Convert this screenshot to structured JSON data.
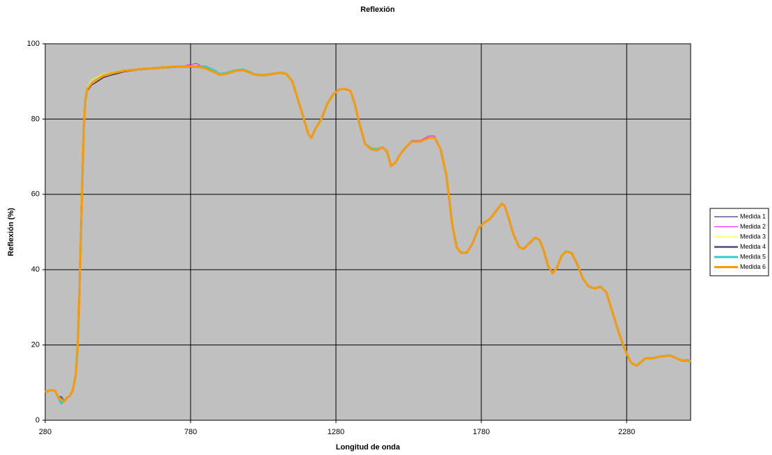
{
  "chart_data": {
    "type": "line",
    "title": "Reflexión",
    "xlabel": "Longitud de onda",
    "ylabel": "Reflexión (%)",
    "xlim": [
      280,
      2500
    ],
    "xticks": [
      280,
      780,
      1280,
      1780,
      2280
    ],
    "ylim": [
      0,
      100
    ],
    "yticks": [
      0,
      20,
      40,
      60,
      80,
      100
    ],
    "grid": true,
    "legend": "right",
    "x": [
      280,
      300,
      315,
      325,
      335,
      345,
      355,
      365,
      375,
      385,
      392,
      398,
      403,
      408,
      413,
      418,
      425,
      440,
      460,
      480,
      500,
      550,
      600,
      650,
      700,
      750,
      800,
      830,
      860,
      880,
      900,
      930,
      960,
      980,
      1000,
      1030,
      1060,
      1090,
      1110,
      1130,
      1150,
      1170,
      1185,
      1195,
      1210,
      1230,
      1250,
      1270,
      1290,
      1310,
      1330,
      1345,
      1360,
      1380,
      1400,
      1420,
      1440,
      1455,
      1470,
      1485,
      1500,
      1520,
      1540,
      1570,
      1600,
      1620,
      1640,
      1660,
      1680,
      1695,
      1710,
      1730,
      1750,
      1770,
      1790,
      1810,
      1830,
      1850,
      1860,
      1875,
      1890,
      1910,
      1925,
      1945,
      1965,
      1980,
      1995,
      2010,
      2025,
      2040,
      2055,
      2070,
      2090,
      2110,
      2130,
      2150,
      2170,
      2190,
      2210,
      2230,
      2250,
      2270,
      2290,
      2300,
      2315,
      2330,
      2345,
      2370,
      2400,
      2430,
      2450,
      2470,
      2490,
      2500
    ],
    "series": [
      {
        "name": "Medida 1",
        "color": "#000066",
        "width": 1,
        "values": [
          7.5,
          8,
          7.8,
          6,
          5.5,
          5,
          6,
          6.5,
          8,
          12,
          20,
          35,
          50,
          65,
          78,
          85,
          87.5,
          89,
          90,
          91,
          91.5,
          92.5,
          93,
          93.3,
          93.6,
          93.8,
          93.8,
          93.5,
          92.5,
          91.8,
          92,
          92.7,
          93,
          92.5,
          91.8,
          91.6,
          92,
          92.3,
          92,
          90,
          85,
          80,
          76,
          75,
          77.5,
          80,
          84,
          86.5,
          87.8,
          88,
          87.5,
          84,
          79,
          73.5,
          72,
          71.7,
          72.5,
          71.5,
          67.5,
          68.5,
          70.5,
          72.5,
          74,
          74,
          75,
          75,
          72,
          65,
          52,
          46,
          44.5,
          44.5,
          47,
          51,
          52.5,
          53.5,
          55.5,
          57.5,
          57,
          53.5,
          49.5,
          46,
          45.5,
          47,
          48.5,
          48,
          45,
          41,
          39,
          40.5,
          43.5,
          44.8,
          44.5,
          41.5,
          37.5,
          35.5,
          35,
          35.5,
          34,
          29,
          24,
          19.5,
          16,
          15,
          14.5,
          15.5,
          16.5,
          16.5,
          17,
          17.2,
          16.5,
          15.8,
          15.8,
          15.5
        ]
      },
      {
        "name": "Medida 2",
        "color": "#ff00ff",
        "width": 1,
        "values": [
          7.5,
          8,
          7.8,
          6.5,
          5.5,
          5,
          6,
          6.5,
          8,
          12,
          20,
          35,
          50,
          65,
          78,
          85,
          88,
          89.5,
          90.5,
          91.5,
          92,
          92.8,
          93.2,
          93.5,
          93.8,
          94,
          94.8,
          93.5,
          92.5,
          91.8,
          92,
          92.7,
          93,
          92.5,
          91.8,
          91.6,
          92,
          92.3,
          92,
          90,
          85,
          80,
          76,
          75,
          77.5,
          80,
          84,
          86.5,
          87.8,
          88,
          87.5,
          84,
          79,
          73.5,
          72,
          71.7,
          72.5,
          71.5,
          67.5,
          68.5,
          70.5,
          72.5,
          74.3,
          74.3,
          75.5,
          75.5,
          72,
          65,
          52,
          46,
          44.5,
          44.5,
          47,
          51,
          52.5,
          53.5,
          55.5,
          57.5,
          57,
          53.5,
          49.5,
          46,
          45.5,
          47,
          48.5,
          48,
          45,
          41,
          39,
          40.5,
          43.5,
          44.8,
          44.5,
          41.5,
          37.5,
          35.5,
          35,
          35.5,
          34,
          29,
          24,
          19.5,
          16,
          15,
          14.5,
          15.5,
          16.5,
          16.5,
          17,
          17.2,
          16.5,
          15.8,
          15.8,
          15.5
        ]
      },
      {
        "name": "Medida 3",
        "color": "#ffff00",
        "width": 1,
        "values": [
          7.5,
          8,
          7.8,
          6,
          5.5,
          5,
          6,
          6.5,
          8,
          12,
          20,
          35,
          50,
          65,
          78,
          85.5,
          88.5,
          90.5,
          91.2,
          92,
          92.3,
          93,
          93.3,
          93.6,
          93.8,
          94,
          94,
          93.5,
          92.5,
          91.8,
          92,
          92.7,
          93,
          92.5,
          91.8,
          91.6,
          92,
          92.3,
          92,
          90,
          85,
          80,
          76,
          75,
          77.5,
          80,
          84,
          86.5,
          87.8,
          88,
          87.5,
          84,
          79,
          73.5,
          72,
          71.7,
          72.5,
          71.5,
          67.5,
          68.5,
          70.5,
          72.5,
          74,
          74,
          75,
          75,
          72,
          65,
          52,
          46,
          44.5,
          44.5,
          47,
          51,
          52.5,
          53.5,
          55.5,
          57.5,
          57,
          53.5,
          49.5,
          46,
          45.5,
          47,
          48.5,
          48,
          45,
          41,
          39,
          40.5,
          43.5,
          44.8,
          44.5,
          41.5,
          37.5,
          35.5,
          35,
          35.5,
          34,
          29,
          24,
          19.5,
          16,
          15,
          14.5,
          15.5,
          16.5,
          16.5,
          17,
          17.2,
          16.5,
          15.8,
          15.8,
          15.5
        ]
      },
      {
        "name": "Medida 4",
        "color": "#666699",
        "width": 3,
        "values": [
          7.5,
          8,
          7.8,
          6,
          6.2,
          5,
          6,
          6.5,
          8,
          12,
          20,
          35,
          50,
          65,
          78,
          85,
          88,
          89.5,
          90.5,
          91.5,
          92,
          92.8,
          93.2,
          93.5,
          93.8,
          94,
          94,
          93.5,
          92.5,
          91.8,
          92,
          92.7,
          93,
          92.5,
          91.8,
          91.6,
          92,
          92.3,
          92,
          90,
          85,
          80,
          76,
          75,
          77.5,
          80,
          84,
          86.5,
          87.8,
          88,
          87.5,
          84,
          79,
          73.5,
          72,
          71.7,
          72.5,
          71.5,
          67.5,
          68.5,
          70.5,
          72.5,
          74,
          74,
          75,
          75,
          72,
          65,
          52,
          46,
          44.5,
          44.5,
          47,
          51,
          52.5,
          53.5,
          55.5,
          57.5,
          57,
          53.5,
          49.5,
          46,
          45.5,
          47,
          48.5,
          48,
          45,
          41,
          39,
          40.5,
          43.5,
          44.8,
          44.5,
          41.5,
          37.5,
          35.5,
          35,
          35.5,
          34,
          29,
          24,
          19.5,
          16,
          15,
          14.5,
          15.5,
          16.5,
          16.5,
          17,
          17.2,
          16.5,
          15.8,
          15.8,
          15.5
        ]
      },
      {
        "name": "Medida 5",
        "color": "#33cccc",
        "width": 3,
        "values": [
          7.5,
          8,
          7.8,
          6,
          4.5,
          5,
          6,
          6.5,
          8,
          12,
          20,
          35,
          50,
          65,
          78,
          85,
          88,
          89.5,
          90.5,
          91.5,
          92,
          92.8,
          93.2,
          93.5,
          93.8,
          94,
          94,
          94,
          93,
          92,
          92.2,
          92.9,
          93.2,
          92.6,
          91.9,
          91.7,
          92,
          92.3,
          92,
          90,
          85,
          80,
          76,
          75,
          77.5,
          80,
          84,
          86.5,
          87.8,
          88,
          87.5,
          84,
          79,
          73.5,
          72.3,
          72,
          72.5,
          71.5,
          67.5,
          68.5,
          70.5,
          72.5,
          74,
          74,
          75,
          75,
          72,
          65,
          52,
          46,
          44.5,
          44.5,
          47,
          51,
          52.5,
          53.5,
          55.5,
          57.5,
          57,
          53.5,
          49.5,
          46,
          45.5,
          47,
          48.5,
          48,
          45,
          41,
          39,
          40.5,
          43.5,
          44.8,
          44.5,
          41.5,
          37.5,
          35.5,
          35,
          35.5,
          34,
          29,
          24,
          19.5,
          16,
          15,
          14.5,
          15.5,
          16.5,
          16.5,
          17,
          17.2,
          16.5,
          15.8,
          16,
          15.8
        ]
      },
      {
        "name": "Medida 6",
        "color": "#ff9900",
        "width": 3,
        "values": [
          7.5,
          8,
          7.8,
          6,
          5.5,
          5,
          6,
          6.5,
          8,
          12,
          20,
          35,
          50,
          65,
          78,
          85,
          88,
          89.5,
          90.5,
          91.5,
          92,
          92.8,
          93.2,
          93.5,
          93.8,
          94,
          94,
          93.5,
          92.5,
          91.8,
          92,
          92.7,
          93,
          92.5,
          91.8,
          91.6,
          92,
          92.3,
          92,
          90,
          85,
          80,
          76,
          75,
          77.5,
          80,
          84,
          86.5,
          87.8,
          88,
          87.5,
          84,
          79,
          73.5,
          72,
          71.7,
          72.5,
          71.5,
          67.5,
          68.5,
          70.5,
          72.5,
          74,
          74,
          75,
          75,
          72,
          65,
          52,
          46,
          44.5,
          44.5,
          47,
          51,
          52.5,
          53.5,
          55.5,
          57.5,
          57,
          53.5,
          49.5,
          46,
          45.5,
          47,
          48.5,
          48,
          45,
          41,
          39,
          40.5,
          43.5,
          44.8,
          44.5,
          41.5,
          37.5,
          35.5,
          35,
          35.5,
          34,
          29,
          24,
          19.5,
          16,
          15,
          14.5,
          15.5,
          16.5,
          16.5,
          17,
          17.2,
          16.5,
          15.8,
          15.8,
          15.5
        ]
      }
    ]
  }
}
